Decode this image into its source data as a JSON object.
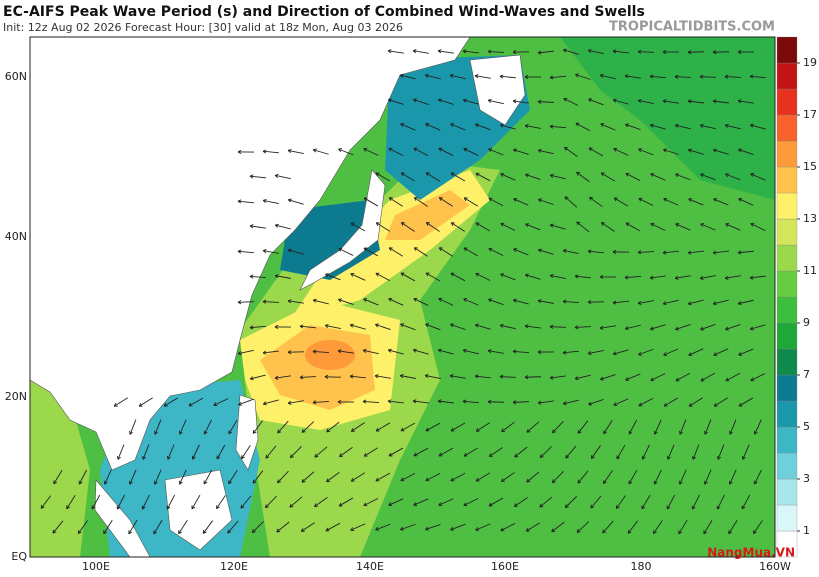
{
  "header": {
    "title": "EC-AIFS Peak Wave Period (s) and Direction of Combined Wind-Waves and Swells",
    "subtitle": "Init: 12z Aug 02 2026   Forecast Hour: [30]   valid at 18z Mon, Aug 03 2026",
    "site": "TROPICALTIDBITS.COM"
  },
  "map": {
    "lat_labels": [
      "60N",
      "40N",
      "20N",
      "EQ"
    ],
    "lon_labels": [
      "100E",
      "120E",
      "140E",
      "160E",
      "180",
      "160W"
    ]
  },
  "colorbar": {
    "range": [
      0,
      20
    ],
    "ticks": [
      1,
      3,
      5,
      7,
      9,
      11,
      13,
      15,
      17,
      19
    ],
    "colors": [
      "#ffffff",
      "#d9f6f8",
      "#a8e6ec",
      "#6fd0dc",
      "#3db6c6",
      "#1b97ac",
      "#0c7b8f",
      "#0f8a4a",
      "#1ea83a",
      "#3cbf3c",
      "#66cc44",
      "#9bd84c",
      "#d3e55a",
      "#fff06a",
      "#ffc34d",
      "#ff9a3a",
      "#f7632b",
      "#e8321f",
      "#c21414",
      "#7a0a0a"
    ]
  },
  "watermark": "NangMua.VN"
}
